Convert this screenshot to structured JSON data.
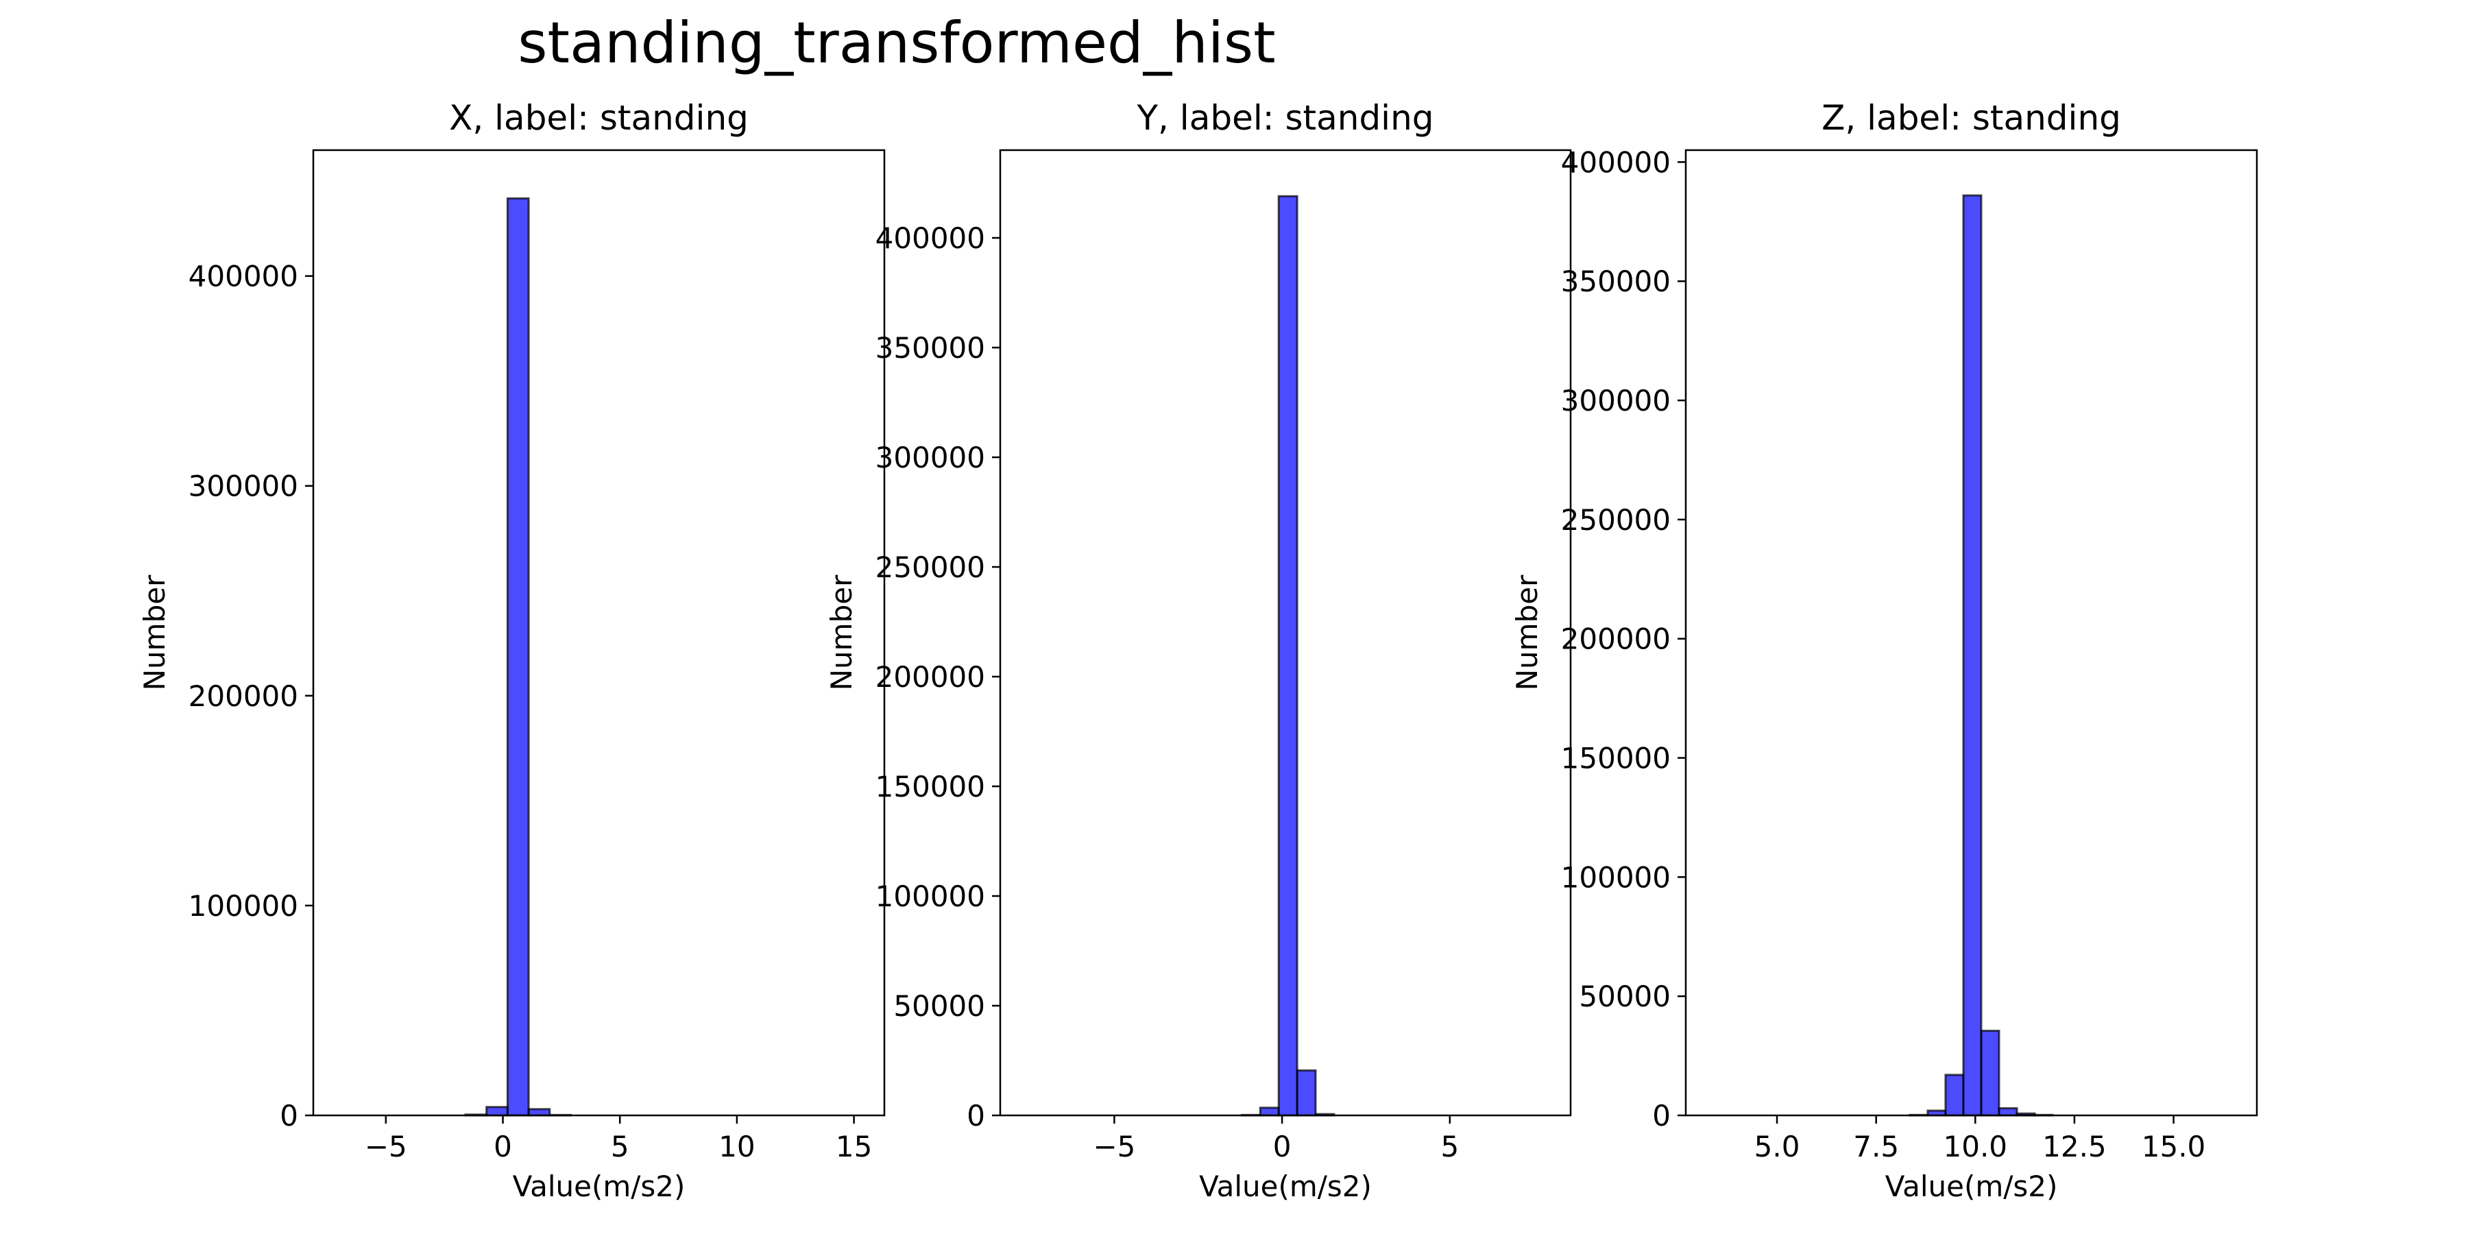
{
  "figure_title": "standing_transformed_hist",
  "chart_data": [
    {
      "type": "bar",
      "title": "X, label: standing",
      "xlabel": "Value(m/s2)",
      "ylabel": "Number",
      "xlim": [
        -8.1,
        16.3
      ],
      "ylim": [
        0,
        460000
      ],
      "xticks": [
        -5,
        0,
        5,
        10,
        15
      ],
      "xtick_labels": [
        "−5",
        "0",
        "5",
        "10",
        "15"
      ],
      "yticks": [
        0,
        100000,
        200000,
        300000,
        400000
      ],
      "ytick_labels": [
        "0",
        "100000",
        "200000",
        "300000",
        "400000"
      ],
      "bin_edges": [
        -7.0,
        -6.1,
        -5.2,
        -4.3,
        -3.4,
        -2.5,
        -1.6,
        -0.7,
        0.2,
        1.1,
        2.0,
        2.9,
        3.8,
        4.7,
        5.6,
        6.5,
        7.4,
        8.3,
        9.2,
        10.1,
        11.0,
        11.9,
        12.8,
        13.7,
        14.6,
        15.2
      ],
      "values": [
        0,
        0,
        0,
        0,
        0,
        0,
        400,
        4000,
        437000,
        3000,
        200,
        0,
        0,
        0,
        0,
        0,
        0,
        0,
        0,
        0,
        0,
        0,
        0,
        0,
        0
      ],
      "color": "#0000ff",
      "edge_color": "#000000"
    },
    {
      "type": "bar",
      "title": "Y, label: standing",
      "xlabel": "Value(m/s2)",
      "ylabel": "Number",
      "xlim": [
        -8.4,
        8.6
      ],
      "ylim": [
        0,
        440000
      ],
      "xticks": [
        -5,
        0,
        5
      ],
      "xtick_labels": [
        "−5",
        "0",
        "5"
      ],
      "yticks": [
        0,
        50000,
        100000,
        150000,
        200000,
        250000,
        300000,
        350000,
        400000
      ],
      "ytick_labels": [
        "0",
        "50000",
        "100000",
        "150000",
        "200000",
        "250000",
        "300000",
        "350000",
        "400000"
      ],
      "bin_edges": [
        -7.8,
        -7.25,
        -6.7,
        -6.15,
        -5.6,
        -5.05,
        -4.5,
        -3.95,
        -3.4,
        -2.85,
        -2.3,
        -1.75,
        -1.2,
        -0.65,
        -0.1,
        0.45,
        1.0,
        1.55,
        2.1,
        2.65,
        3.2,
        3.75,
        4.3,
        4.85,
        5.4,
        5.95,
        6.5,
        7.05,
        7.6,
        8.0
      ],
      "values": [
        0,
        0,
        0,
        0,
        0,
        0,
        0,
        0,
        0,
        0,
        0,
        0,
        200,
        3500,
        419000,
        20500,
        600,
        0,
        0,
        0,
        0,
        0,
        0,
        0,
        0,
        0,
        0,
        0,
        0
      ],
      "color": "#0000ff",
      "edge_color": "#000000"
    },
    {
      "type": "bar",
      "title": "Z, label: standing",
      "xlabel": "Value(m/s2)",
      "ylabel": "Number",
      "xlim": [
        2.7,
        17.1
      ],
      "ylim": [
        0,
        405000
      ],
      "xticks": [
        5.0,
        7.5,
        10.0,
        12.5,
        15.0
      ],
      "xtick_labels": [
        "5.0",
        "7.5",
        "10.0",
        "12.5",
        "15.0"
      ],
      "yticks": [
        0,
        50000,
        100000,
        150000,
        200000,
        250000,
        300000,
        350000,
        400000
      ],
      "ytick_labels": [
        "0",
        "50000",
        "100000",
        "150000",
        "200000",
        "250000",
        "300000",
        "350000",
        "400000"
      ],
      "bin_edges": [
        3.4,
        3.85,
        4.3,
        4.75,
        5.2,
        5.65,
        6.1,
        6.55,
        7.0,
        7.45,
        7.9,
        8.35,
        8.8,
        9.25,
        9.7,
        10.15,
        10.6,
        11.05,
        11.5,
        11.95,
        12.4,
        12.85,
        13.3,
        13.75,
        14.2,
        14.65,
        15.1,
        15.55,
        16.0,
        16.45
      ],
      "values": [
        0,
        0,
        0,
        0,
        0,
        0,
        0,
        0,
        0,
        0,
        0,
        200,
        2000,
        17000,
        386000,
        35500,
        3000,
        800,
        200,
        0,
        0,
        0,
        0,
        0,
        0,
        0,
        0,
        0,
        0
      ],
      "color": "#0000ff",
      "edge_color": "#000000"
    }
  ]
}
